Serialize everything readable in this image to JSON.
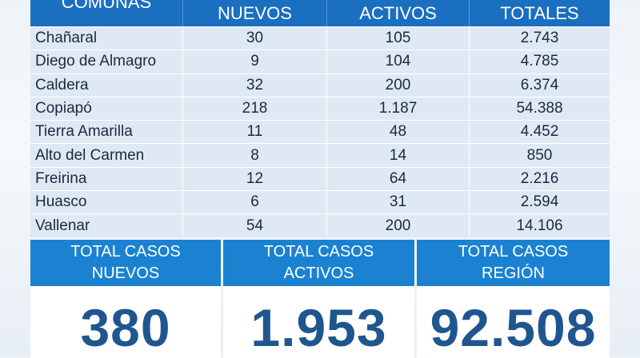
{
  "table": {
    "headers": [
      "COMUNAS",
      "NUEVOS",
      "ACTIVOS",
      "TOTALES"
    ],
    "rows": [
      {
        "comuna": "Chañaral",
        "nuevos": "30",
        "activos": "105",
        "totales": "2.743"
      },
      {
        "comuna": "Diego de Almagro",
        "nuevos": "9",
        "activos": "104",
        "totales": "4.785"
      },
      {
        "comuna": "Caldera",
        "nuevos": "32",
        "activos": "200",
        "totales": "6.374"
      },
      {
        "comuna": "Copiapó",
        "nuevos": "218",
        "activos": "1.187",
        "totales": "54.388"
      },
      {
        "comuna": "Tierra Amarilla",
        "nuevos": "11",
        "activos": "48",
        "totales": "4.452"
      },
      {
        "comuna": "Alto del Carmen",
        "nuevos": "8",
        "activos": "14",
        "totales": "850"
      },
      {
        "comuna": "Freirina",
        "nuevos": "12",
        "activos": "64",
        "totales": "2.216"
      },
      {
        "comuna": "Huasco",
        "nuevos": "6",
        "activos": "31",
        "totales": "2.594"
      },
      {
        "comuna": "Vallenar",
        "nuevos": "54",
        "activos": "200",
        "totales": "14.106"
      }
    ]
  },
  "totals": [
    {
      "line1": "TOTAL CASOS",
      "line2": "NUEVOS",
      "value": "380"
    },
    {
      "line1": "TOTAL CASOS",
      "line2": "ACTIVOS",
      "value": "1.953"
    },
    {
      "line1": "TOTAL CASOS",
      "line2": "REGIÓN",
      "value": "92.508"
    }
  ],
  "colors": {
    "header_blue": "#1a6fc0",
    "totals_blue": "#1b82d2",
    "row_bg": "#dfe9f4",
    "value_text": "#1f5690"
  }
}
